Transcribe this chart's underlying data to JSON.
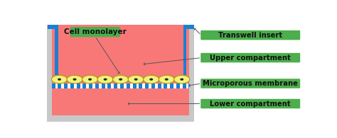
{
  "fig_width": 4.74,
  "fig_height": 1.95,
  "dpi": 100,
  "bg_color": "#ffffff",
  "gray_outer": "#c8c8c8",
  "gray_inner": "#e8e8e8",
  "pink": "#f87878",
  "blue": "#1a7fd4",
  "cell_yellow": "#f5f07a",
  "cell_edge": "#999900",
  "nucleus": "#222222",
  "green_box": "#4cae4c",
  "black_text": "#111111",
  "white_text": "#ffffff",
  "arrow_color": "#555555",
  "labels": [
    "Transwell insert",
    "Upper compartment",
    "Microporous membrane",
    "Lower compartment"
  ],
  "cell_monolayer_label": "Cell monolayer",
  "n_cells": 9,
  "n_membrane_stripes": 22
}
